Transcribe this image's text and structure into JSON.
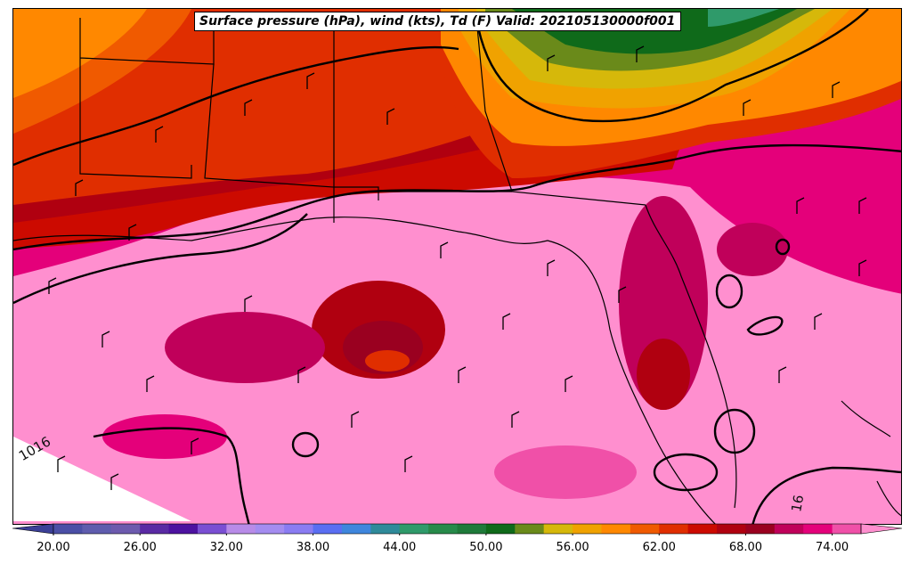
{
  "title": "Surface pressure (hPa), wind (kts), Td (F) Valid: 202105130000f001",
  "colorbar": {
    "tick_labels": [
      "20.00",
      "26.00",
      "32.00",
      "38.00",
      "44.00",
      "50.00",
      "56.00",
      "62.00",
      "68.00",
      "74.00"
    ],
    "levels": [
      18,
      20,
      22,
      24,
      26,
      28,
      30,
      32,
      34,
      36,
      38,
      40,
      42,
      44,
      46,
      48,
      50,
      52,
      54,
      56,
      58,
      60,
      62,
      64,
      66,
      68,
      70,
      72,
      74,
      76
    ],
    "colors": [
      "#3b3f97",
      "#4b4fa6",
      "#5f5cae",
      "#6d5aae",
      "#5a2aa4",
      "#4d12a0",
      "#7a4fd3",
      "#b88be8",
      "#a48cf0",
      "#8a7cf2",
      "#5a6ef2",
      "#3f86dd",
      "#2f8a9a",
      "#2f9a6a",
      "#278a4a",
      "#1f7a3a",
      "#0f6a1a",
      "#6a8a1a",
      "#d6b80a",
      "#f0a200",
      "#ff8800",
      "#f05a00",
      "#e02e00",
      "#cc0a00",
      "#b00010",
      "#9a0020",
      "#c0005a",
      "#e4007a",
      "#f050a8",
      "#ff8fcf"
    ]
  },
  "contour_labels": [
    "1016",
    "16"
  ]
}
